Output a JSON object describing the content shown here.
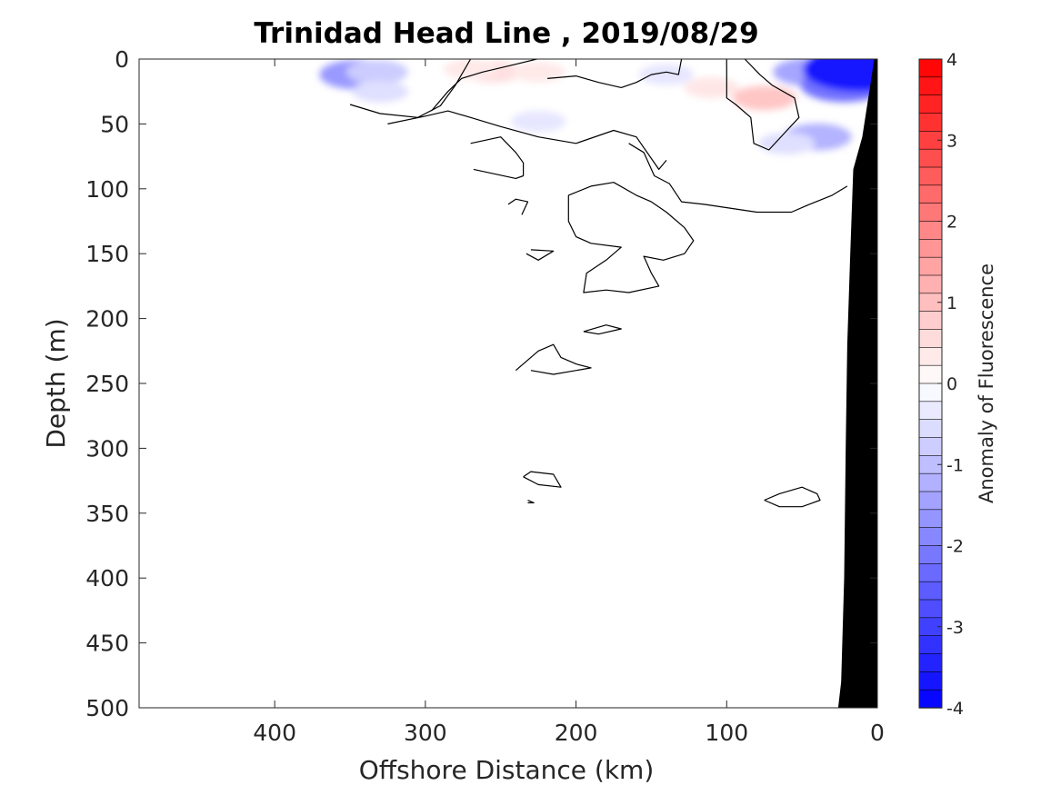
{
  "chart_data": {
    "type": "contour",
    "title": "Trinidad Head Line , 2019/08/29",
    "xlabel": "Offshore Distance (km)",
    "ylabel": "Depth (m)",
    "xlim": [
      490,
      0
    ],
    "ylim": [
      0,
      500
    ],
    "x_reversed": true,
    "y_reversed": true,
    "xticks": [
      400,
      300,
      200,
      100,
      0
    ],
    "yticks": [
      0,
      50,
      100,
      150,
      200,
      250,
      300,
      350,
      400,
      450,
      500
    ],
    "colorbar": {
      "label": "Anomaly of Fluorescence",
      "range": [
        -4,
        4
      ],
      "ticks": [
        4,
        3,
        2,
        1,
        0,
        -1,
        -2,
        -3,
        -4
      ],
      "levels": 36,
      "colormap": "blue-white-red",
      "low_color": "#0000ff",
      "high_color": "#ff0000"
    },
    "zero_contour_color": "#000000",
    "bottom_color": "#000000",
    "bottom_profile": [
      {
        "x": 2,
        "depth": 0
      },
      {
        "x": 10,
        "depth": 60
      },
      {
        "x": 16,
        "depth": 85
      },
      {
        "x": 18,
        "depth": 150
      },
      {
        "x": 20,
        "depth": 220
      },
      {
        "x": 21,
        "depth": 300
      },
      {
        "x": 22,
        "depth": 400
      },
      {
        "x": 24,
        "depth": 480
      },
      {
        "x": 26,
        "depth": 500
      }
    ],
    "anomaly_patches": [
      {
        "x": 345,
        "depth": 12,
        "value": -1.6
      },
      {
        "x": 332,
        "depth": 10,
        "value": -0.8
      },
      {
        "x": 330,
        "depth": 25,
        "value": -0.5
      },
      {
        "x": 255,
        "depth": 10,
        "value": 0.5
      },
      {
        "x": 270,
        "depth": 8,
        "value": 0.35
      },
      {
        "x": 225,
        "depth": 10,
        "value": 0.35
      },
      {
        "x": 225,
        "depth": 48,
        "value": -0.4
      },
      {
        "x": 140,
        "depth": 12,
        "value": -0.4
      },
      {
        "x": 110,
        "depth": 22,
        "value": 0.4
      },
      {
        "x": 75,
        "depth": 30,
        "value": 0.9
      },
      {
        "x": 45,
        "depth": 10,
        "value": -1.4
      },
      {
        "x": 22,
        "depth": 20,
        "value": -2.2
      },
      {
        "x": 12,
        "depth": 8,
        "value": -3.6
      },
      {
        "x": 40,
        "depth": 60,
        "value": -1.2
      },
      {
        "x": 60,
        "depth": 65,
        "value": -0.5
      }
    ],
    "zero_contours": [
      [
        [
          350,
          35
        ],
        [
          330,
          42
        ],
        [
          305,
          45
        ],
        [
          290,
          36
        ],
        [
          280,
          20
        ],
        [
          270,
          0
        ]
      ],
      [
        [
          325,
          50
        ],
        [
          300,
          44
        ],
        [
          285,
          40
        ],
        [
          270,
          45
        ],
        [
          250,
          52
        ],
        [
          225,
          60
        ],
        [
          200,
          65
        ],
        [
          175,
          55
        ],
        [
          160,
          60
        ],
        [
          145,
          85
        ],
        [
          140,
          78
        ]
      ],
      [
        [
          296,
          40
        ],
        [
          285,
          25
        ],
        [
          276,
          15
        ],
        [
          262,
          10
        ],
        [
          240,
          4
        ],
        [
          226,
          0
        ]
      ],
      [
        [
          219,
          15
        ],
        [
          200,
          13
        ],
        [
          185,
          18
        ],
        [
          170,
          22
        ],
        [
          160,
          18
        ],
        [
          150,
          12
        ],
        [
          140,
          10
        ],
        [
          132,
          12
        ],
        [
          130,
          0
        ]
      ],
      [
        [
          100,
          0
        ],
        [
          100,
          30
        ],
        [
          94,
          35
        ],
        [
          84,
          45
        ],
        [
          82,
          65
        ],
        [
          72,
          70
        ],
        [
          60,
          55
        ],
        [
          52,
          45
        ],
        [
          55,
          30
        ],
        [
          70,
          20
        ],
        [
          78,
          12
        ],
        [
          88,
          0
        ]
      ],
      [
        [
          270,
          65
        ],
        [
          250,
          60
        ],
        [
          240,
          72
        ],
        [
          235,
          80
        ],
        [
          235,
          90
        ],
        [
          240,
          92
        ],
        [
          268,
          85
        ]
      ],
      [
        [
          165,
          65
        ],
        [
          155,
          72
        ],
        [
          148,
          90
        ],
        [
          138,
          96
        ],
        [
          130,
          110
        ],
        [
          115,
          112
        ],
        [
          80,
          118
        ],
        [
          70,
          118
        ],
        [
          57,
          118
        ],
        [
          45,
          112
        ],
        [
          30,
          105
        ],
        [
          20,
          98
        ]
      ],
      [
        [
          245,
          112
        ],
        [
          240,
          108
        ],
        [
          232,
          110
        ],
        [
          236,
          120
        ]
      ],
      [
        [
          233,
          150
        ],
        [
          225,
          155
        ],
        [
          215,
          148
        ],
        [
          230,
          147
        ]
      ],
      [
        [
          205,
          105
        ],
        [
          190,
          98
        ],
        [
          175,
          95
        ],
        [
          160,
          105
        ],
        [
          150,
          110
        ],
        [
          140,
          118
        ],
        [
          128,
          130
        ],
        [
          122,
          140
        ],
        [
          128,
          150
        ],
        [
          142,
          155
        ],
        [
          155,
          152
        ],
        [
          150,
          165
        ],
        [
          145,
          175
        ],
        [
          165,
          180
        ],
        [
          180,
          178
        ],
        [
          195,
          180
        ],
        [
          193,
          165
        ],
        [
          180,
          155
        ],
        [
          170,
          145
        ],
        [
          190,
          142
        ],
        [
          200,
          137
        ],
        [
          205,
          125
        ],
        [
          205,
          105
        ]
      ],
      [
        [
          195,
          210
        ],
        [
          180,
          205
        ],
        [
          170,
          208
        ],
        [
          185,
          212
        ],
        [
          195,
          210
        ]
      ],
      [
        [
          240,
          240
        ],
        [
          225,
          225
        ],
        [
          215,
          220
        ],
        [
          210,
          230
        ],
        [
          200,
          235
        ],
        [
          190,
          238
        ],
        [
          215,
          243
        ],
        [
          230,
          240
        ]
      ],
      [
        [
          235,
          322
        ],
        [
          230,
          318
        ],
        [
          215,
          320
        ],
        [
          210,
          330
        ],
        [
          225,
          328
        ],
        [
          235,
          322
        ]
      ],
      [
        [
          232,
          340
        ],
        [
          228,
          342
        ],
        [
          232,
          342
        ]
      ],
      [
        [
          75,
          340
        ],
        [
          65,
          335
        ],
        [
          50,
          330
        ],
        [
          40,
          335
        ],
        [
          38,
          340
        ],
        [
          50,
          345
        ],
        [
          65,
          345
        ],
        [
          75,
          340
        ]
      ]
    ]
  }
}
